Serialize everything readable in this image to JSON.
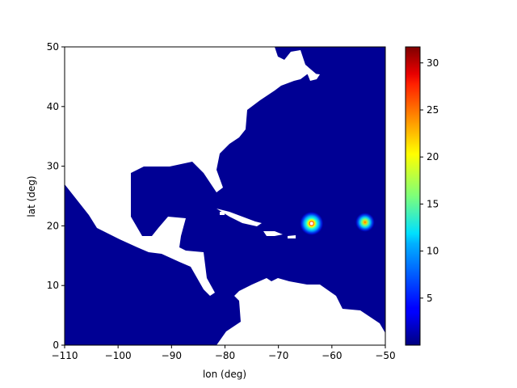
{
  "chart_data": {
    "type": "heatmap",
    "title": "",
    "xlabel": "lon (deg)",
    "ylabel": "lat (deg)",
    "xlim": [
      -110,
      -50
    ],
    "ylim": [
      0,
      50
    ],
    "xticks": [
      -110,
      -100,
      -90,
      -80,
      -70,
      -60,
      -50
    ],
    "yticks": [
      0,
      10,
      20,
      30,
      40,
      50
    ],
    "xtick_labels": [
      "−110",
      "−100",
      "−90",
      "−80",
      "−70",
      "−60",
      "−50"
    ],
    "ytick_labels": [
      "0",
      "10",
      "20",
      "30",
      "40",
      "50"
    ],
    "colormap": "jet",
    "color_range": [
      0,
      31.7
    ],
    "colorbar_ticks": [
      5,
      10,
      15,
      20,
      25,
      30
    ],
    "colorbar_tick_labels": [
      "5",
      "10",
      "15",
      "20",
      "25",
      "30"
    ],
    "background_value": 0.3,
    "land_color": "#ffffff",
    "hotspots": [
      {
        "lon": -63.8,
        "lat": 20.4,
        "peak": 31.7,
        "radius_deg": 2.2,
        "eye": true
      },
      {
        "lon": -53.8,
        "lat": 20.6,
        "peak": 22.0,
        "radius_deg": 1.8,
        "eye": false
      }
    ]
  }
}
